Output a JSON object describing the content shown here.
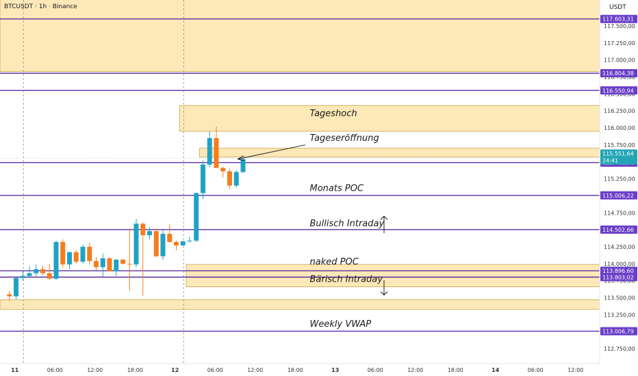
{
  "header": {
    "symbol_title": "BTCUSDT · 1h · Binance",
    "currency": "USDT"
  },
  "colors": {
    "zone_fill": "#fde9b8",
    "zone_stroke": "#c9a24a",
    "level_line": "#5b2ca0",
    "tag_purple": "#6a3fc8",
    "tag_current": "#22a6b5",
    "candle_up": "#1fa2c6",
    "candle_down": "#f57c1f",
    "current_line": "#5b2ca0"
  },
  "chart_data": {
    "type": "candlestick",
    "y_axis": {
      "range": [
        112600,
        117800
      ],
      "ticks": [
        "117.500,00",
        "117.250,00",
        "117.000,00",
        "116.750,00",
        "116.500,00",
        "116.250,00",
        "116.000,00",
        "115.750,00",
        "115.500,00",
        "115.250,00",
        "115.000,00",
        "114.750,00",
        "114.500,00",
        "114.250,00",
        "114.000,00",
        "113.750,00",
        "113.500,00",
        "113.250,00",
        "113.000,00",
        "112.750,00"
      ],
      "tick_values": [
        117500,
        117250,
        117000,
        116750,
        116500,
        116250,
        116000,
        115750,
        115500,
        115250,
        115000,
        114750,
        114500,
        114250,
        114000,
        113750,
        113500,
        113250,
        113000,
        112750
      ]
    },
    "x_axis": {
      "labels": [
        {
          "text": "11",
          "bold": true,
          "bar": 1
        },
        {
          "text": "06:00",
          "bold": false,
          "bar": 7
        },
        {
          "text": "12:00",
          "bold": false,
          "bar": 13
        },
        {
          "text": "18:00",
          "bold": false,
          "bar": 19
        },
        {
          "text": "12",
          "bold": true,
          "bar": 25
        },
        {
          "text": "06:00",
          "bold": false,
          "bar": 31
        },
        {
          "text": "12:00",
          "bold": false,
          "bar": 37
        },
        {
          "text": "18:00",
          "bold": false,
          "bar": 43
        },
        {
          "text": "13",
          "bold": true,
          "bar": 49
        },
        {
          "text": "06:00",
          "bold": false,
          "bar": 55
        },
        {
          "text": "12:00",
          "bold": false,
          "bar": 61
        },
        {
          "text": "18:00",
          "bold": false,
          "bar": 67
        },
        {
          "text": "14",
          "bold": true,
          "bar": 73
        },
        {
          "text": "06:00",
          "bold": false,
          "bar": 79
        },
        {
          "text": "12:00",
          "bold": false,
          "bar": 85
        }
      ]
    },
    "day_separators": [
      3,
      27
    ],
    "candles": [
      {
        "o": 113550,
        "h": 113600,
        "l": 113450,
        "c": 113520
      },
      {
        "o": 113520,
        "h": 113800,
        "l": 113480,
        "c": 113790
      },
      {
        "o": 113790,
        "h": 113900,
        "l": 113750,
        "c": 113820
      },
      {
        "o": 113820,
        "h": 113960,
        "l": 113800,
        "c": 113860
      },
      {
        "o": 113860,
        "h": 113990,
        "l": 113820,
        "c": 113920
      },
      {
        "o": 113920,
        "h": 113970,
        "l": 113830,
        "c": 113860
      },
      {
        "o": 113860,
        "h": 114000,
        "l": 113760,
        "c": 113780
      },
      {
        "o": 113780,
        "h": 114340,
        "l": 113760,
        "c": 114320
      },
      {
        "o": 114320,
        "h": 114360,
        "l": 113940,
        "c": 113990
      },
      {
        "o": 113990,
        "h": 114180,
        "l": 113920,
        "c": 114170
      },
      {
        "o": 114170,
        "h": 114200,
        "l": 114000,
        "c": 114030
      },
      {
        "o": 114030,
        "h": 114280,
        "l": 114000,
        "c": 114250
      },
      {
        "o": 114250,
        "h": 114310,
        "l": 113990,
        "c": 114040
      },
      {
        "o": 114040,
        "h": 114100,
        "l": 113900,
        "c": 113950
      },
      {
        "o": 113950,
        "h": 114150,
        "l": 113810,
        "c": 114080
      },
      {
        "o": 114080,
        "h": 114100,
        "l": 113880,
        "c": 113890
      },
      {
        "o": 113890,
        "h": 114070,
        "l": 113820,
        "c": 114060
      },
      {
        "o": 114060,
        "h": 114070,
        "l": 113990,
        "c": 114000
      },
      {
        "o": 114000,
        "h": 114520,
        "l": 113600,
        "c": 113990
      },
      {
        "o": 113990,
        "h": 114660,
        "l": 113950,
        "c": 114590
      },
      {
        "o": 114590,
        "h": 114600,
        "l": 113530,
        "c": 114420
      },
      {
        "o": 114420,
        "h": 114540,
        "l": 114360,
        "c": 114480
      },
      {
        "o": 114480,
        "h": 114520,
        "l": 114100,
        "c": 114110
      },
      {
        "o": 114110,
        "h": 114500,
        "l": 114060,
        "c": 114440
      },
      {
        "o": 114440,
        "h": 114580,
        "l": 114310,
        "c": 114320
      },
      {
        "o": 114320,
        "h": 114340,
        "l": 114200,
        "c": 114270
      },
      {
        "o": 114270,
        "h": 114340,
        "l": 114260,
        "c": 114330
      },
      {
        "o": 114330,
        "h": 114400,
        "l": 114310,
        "c": 114340
      },
      {
        "o": 114340,
        "h": 115050,
        "l": 114320,
        "c": 115040
      },
      {
        "o": 115040,
        "h": 115520,
        "l": 114950,
        "c": 115460
      },
      {
        "o": 115460,
        "h": 115950,
        "l": 115420,
        "c": 115850
      },
      {
        "o": 115850,
        "h": 116020,
        "l": 115430,
        "c": 115410
      },
      {
        "o": 115410,
        "h": 115430,
        "l": 115270,
        "c": 115360
      },
      {
        "o": 115360,
        "h": 115400,
        "l": 115100,
        "c": 115150
      },
      {
        "o": 115150,
        "h": 115380,
        "l": 115120,
        "c": 115350
      },
      {
        "o": 115350,
        "h": 115560,
        "l": 115330,
        "c": 115540
      }
    ],
    "levels": [
      {
        "value": 117603.31,
        "label": "117.603,31",
        "tag_color": "#6a3fc8"
      },
      {
        "value": 116804.38,
        "label": "116.804,38",
        "tag_color": "#6a3fc8"
      },
      {
        "value": 116550.94,
        "label": "116.550,94",
        "tag_color": "#6a3fc8"
      },
      {
        "value": 115488.74,
        "label": "115.488,74",
        "tag_color": "#6a3fc8"
      },
      {
        "value": 115006.22,
        "label": "115.006,22",
        "tag_color": "#6a3fc8"
      },
      {
        "value": 114502.66,
        "label": "114.502,66",
        "tag_color": "#6a3fc8"
      },
      {
        "value": 113896.6,
        "label": "113.896,60",
        "tag_color": "#6a3fc8"
      },
      {
        "value": 113803.02,
        "label": "113.803,02",
        "tag_color": "#6a3fc8"
      },
      {
        "value": 113006.79,
        "label": "113.006,79",
        "tag_color": "#6a3fc8"
      }
    ],
    "current_price": {
      "value": 115551.64,
      "label": "115.551,64",
      "countdown": "24:41"
    },
    "zones": [
      {
        "top": 117980,
        "bottom": 116830,
        "start_bar": 0,
        "end_bar": null
      },
      {
        "top": 116330,
        "bottom": 115950,
        "start_bar": 27,
        "end_bar": null
      },
      {
        "top": 115700,
        "bottom": 115570,
        "start_bar": 30,
        "end_bar": null
      },
      {
        "top": 113990,
        "bottom": 113660,
        "start_bar": 28,
        "end_bar": null
      },
      {
        "top": 113470,
        "bottom": 113330,
        "start_bar": 0,
        "end_bar": null
      }
    ],
    "annotations": [
      {
        "text": "Tageshoch",
        "value": 116170,
        "bar": 46
      },
      {
        "text": "Tageseröffnung",
        "value": 115810,
        "bar": 46
      },
      {
        "text": "Monats POC",
        "value": 115070,
        "bar": 46
      },
      {
        "text": "Bullisch Intraday",
        "value": 114550,
        "bar": 46
      },
      {
        "text": "naked POC",
        "value": 113990,
        "bar": 46
      },
      {
        "text": "Bärisch Intraday",
        "value": 113730,
        "bar": 46
      },
      {
        "text": "Weekly VWAP",
        "value": 113070,
        "bar": 46
      }
    ]
  }
}
